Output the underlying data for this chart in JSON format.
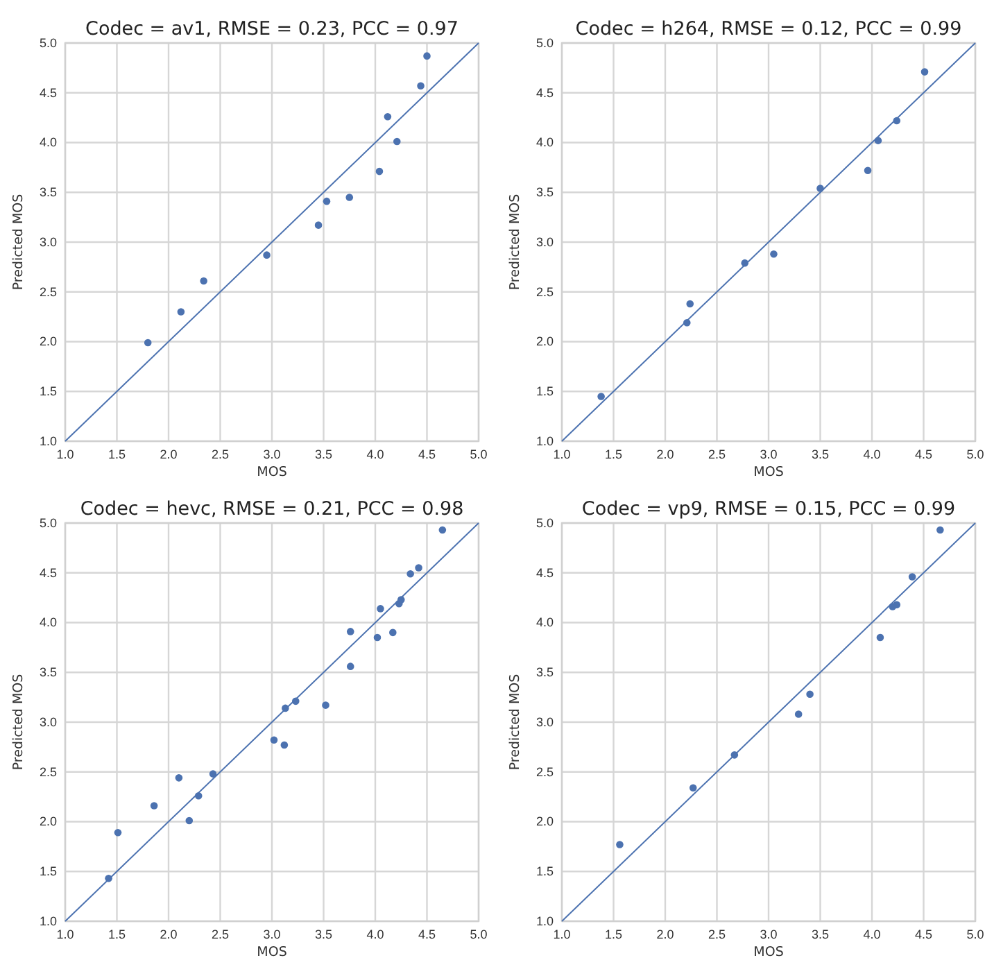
{
  "chart_data": [
    {
      "type": "scatter",
      "title": "Codec = av1, RMSE = 0.23, PCC = 0.97",
      "xlabel": "MOS",
      "ylabel": "Predicted MOS",
      "xlim": [
        1,
        5
      ],
      "ylim": [
        1,
        5
      ],
      "xticks": [
        {
          "value": 1,
          "label": "1.0"
        },
        {
          "value": 1.5,
          "label": "1.5"
        },
        {
          "value": 2,
          "label": "2.0"
        },
        {
          "value": 2.5,
          "label": "2.5"
        },
        {
          "value": 3,
          "label": "3.0"
        },
        {
          "value": 3.5,
          "label": "3.5"
        },
        {
          "value": 4,
          "label": "4.0"
        },
        {
          "value": 4.5,
          "label": "4.5"
        },
        {
          "value": 5,
          "label": "5.0"
        }
      ],
      "yticks": [
        {
          "value": 1,
          "label": "1.0"
        },
        {
          "value": 1.5,
          "label": "1.5"
        },
        {
          "value": 2,
          "label": "2.0"
        },
        {
          "value": 2.5,
          "label": "2.5"
        },
        {
          "value": 3,
          "label": "3.0"
        },
        {
          "value": 3.5,
          "label": "3.5"
        },
        {
          "value": 4,
          "label": "4.0"
        },
        {
          "value": 4.5,
          "label": "4.5"
        },
        {
          "value": 5,
          "label": "5.0"
        }
      ],
      "grid": true,
      "series": [
        {
          "marker": "circle",
          "color": "#4c72b0",
          "x": [
            1.8,
            2.12,
            2.34,
            2.95,
            3.45,
            3.53,
            3.75,
            4.04,
            4.12,
            4.21,
            4.44,
            4.5
          ],
          "values": [
            1.99,
            2.3,
            2.61,
            2.87,
            3.17,
            3.41,
            3.45,
            3.71,
            4.26,
            4.01,
            4.57,
            4.87
          ]
        },
        {
          "type": "line",
          "color": "#4c72b0",
          "x": [
            1,
            5
          ],
          "values": [
            1,
            5
          ]
        }
      ]
    },
    {
      "type": "scatter",
      "title": "Codec = h264, RMSE = 0.12, PCC = 0.99",
      "xlabel": "MOS",
      "ylabel": "Predicted MOS",
      "xlim": [
        1,
        5
      ],
      "ylim": [
        1,
        5
      ],
      "xticks": [
        {
          "value": 1,
          "label": "1.0"
        },
        {
          "value": 1.5,
          "label": "1.5"
        },
        {
          "value": 2,
          "label": "2.0"
        },
        {
          "value": 2.5,
          "label": "2.5"
        },
        {
          "value": 3,
          "label": "3.0"
        },
        {
          "value": 3.5,
          "label": "3.5"
        },
        {
          "value": 4,
          "label": "4.0"
        },
        {
          "value": 4.5,
          "label": "4.5"
        },
        {
          "value": 5,
          "label": "5.0"
        }
      ],
      "yticks": [
        {
          "value": 1,
          "label": "1.0"
        },
        {
          "value": 1.5,
          "label": "1.5"
        },
        {
          "value": 2,
          "label": "2.0"
        },
        {
          "value": 2.5,
          "label": "2.5"
        },
        {
          "value": 3,
          "label": "3.0"
        },
        {
          "value": 3.5,
          "label": "3.5"
        },
        {
          "value": 4,
          "label": "4.0"
        },
        {
          "value": 4.5,
          "label": "4.5"
        },
        {
          "value": 5,
          "label": "5.0"
        }
      ],
      "grid": true,
      "series": [
        {
          "marker": "circle",
          "color": "#4c72b0",
          "x": [
            1.38,
            2.21,
            2.24,
            2.77,
            3.05,
            3.5,
            3.96,
            4.06,
            4.24,
            4.51
          ],
          "values": [
            1.45,
            2.19,
            2.38,
            2.79,
            2.88,
            3.54,
            3.72,
            4.02,
            4.22,
            4.71
          ]
        },
        {
          "type": "line",
          "color": "#4c72b0",
          "x": [
            1,
            5
          ],
          "values": [
            1,
            5
          ]
        }
      ]
    },
    {
      "type": "scatter",
      "title": "Codec = hevc, RMSE = 0.21, PCC = 0.98",
      "xlabel": "MOS",
      "ylabel": "Predicted MOS",
      "xlim": [
        1,
        5
      ],
      "ylim": [
        1,
        5
      ],
      "xticks": [
        {
          "value": 1,
          "label": "1.0"
        },
        {
          "value": 1.5,
          "label": "1.5"
        },
        {
          "value": 2,
          "label": "2.0"
        },
        {
          "value": 2.5,
          "label": "2.5"
        },
        {
          "value": 3,
          "label": "3.0"
        },
        {
          "value": 3.5,
          "label": "3.5"
        },
        {
          "value": 4,
          "label": "4.0"
        },
        {
          "value": 4.5,
          "label": "4.5"
        },
        {
          "value": 5,
          "label": "5.0"
        }
      ],
      "yticks": [
        {
          "value": 1,
          "label": "1.0"
        },
        {
          "value": 1.5,
          "label": "1.5"
        },
        {
          "value": 2,
          "label": "2.0"
        },
        {
          "value": 2.5,
          "label": "2.5"
        },
        {
          "value": 3,
          "label": "3.0"
        },
        {
          "value": 3.5,
          "label": "3.5"
        },
        {
          "value": 4,
          "label": "4.0"
        },
        {
          "value": 4.5,
          "label": "4.5"
        },
        {
          "value": 5,
          "label": "5.0"
        }
      ],
      "grid": true,
      "series": [
        {
          "marker": "circle",
          "color": "#4c72b0",
          "x": [
            1.42,
            1.51,
            1.86,
            2.1,
            2.2,
            2.29,
            2.43,
            3.02,
            3.12,
            3.13,
            3.23,
            3.52,
            3.76,
            3.76,
            4.02,
            4.05,
            4.17,
            4.23,
            4.25,
            4.34,
            4.42,
            4.65
          ],
          "values": [
            1.43,
            1.89,
            2.16,
            2.44,
            2.01,
            2.26,
            2.48,
            2.82,
            2.77,
            3.14,
            3.21,
            3.17,
            3.91,
            3.56,
            3.85,
            4.14,
            3.9,
            4.19,
            4.23,
            4.49,
            4.55,
            4.93
          ]
        },
        {
          "type": "line",
          "color": "#4c72b0",
          "x": [
            1,
            5
          ],
          "values": [
            1,
            5
          ]
        }
      ]
    },
    {
      "type": "scatter",
      "title": "Codec = vp9, RMSE = 0.15, PCC = 0.99",
      "xlabel": "MOS",
      "ylabel": "Predicted MOS",
      "xlim": [
        1,
        5
      ],
      "ylim": [
        1,
        5
      ],
      "xticks": [
        {
          "value": 1,
          "label": "1.0"
        },
        {
          "value": 1.5,
          "label": "1.5"
        },
        {
          "value": 2,
          "label": "2.0"
        },
        {
          "value": 2.5,
          "label": "2.5"
        },
        {
          "value": 3,
          "label": "3.0"
        },
        {
          "value": 3.5,
          "label": "3.5"
        },
        {
          "value": 4,
          "label": "4.0"
        },
        {
          "value": 4.5,
          "label": "4.5"
        },
        {
          "value": 5,
          "label": "5.0"
        }
      ],
      "yticks": [
        {
          "value": 1,
          "label": "1.0"
        },
        {
          "value": 1.5,
          "label": "1.5"
        },
        {
          "value": 2,
          "label": "2.0"
        },
        {
          "value": 2.5,
          "label": "2.5"
        },
        {
          "value": 3,
          "label": "3.0"
        },
        {
          "value": 3.5,
          "label": "3.5"
        },
        {
          "value": 4,
          "label": "4.0"
        },
        {
          "value": 4.5,
          "label": "4.5"
        },
        {
          "value": 5,
          "label": "5.0"
        }
      ],
      "grid": true,
      "series": [
        {
          "marker": "circle",
          "color": "#4c72b0",
          "x": [
            1.56,
            2.27,
            2.67,
            3.29,
            3.4,
            4.08,
            4.2,
            4.24,
            4.39,
            4.66
          ],
          "values": [
            1.77,
            2.34,
            2.67,
            3.08,
            3.28,
            3.85,
            4.16,
            4.18,
            4.46,
            4.93
          ]
        },
        {
          "type": "line",
          "color": "#4c72b0",
          "x": [
            1,
            5
          ],
          "values": [
            1,
            5
          ]
        }
      ]
    }
  ]
}
